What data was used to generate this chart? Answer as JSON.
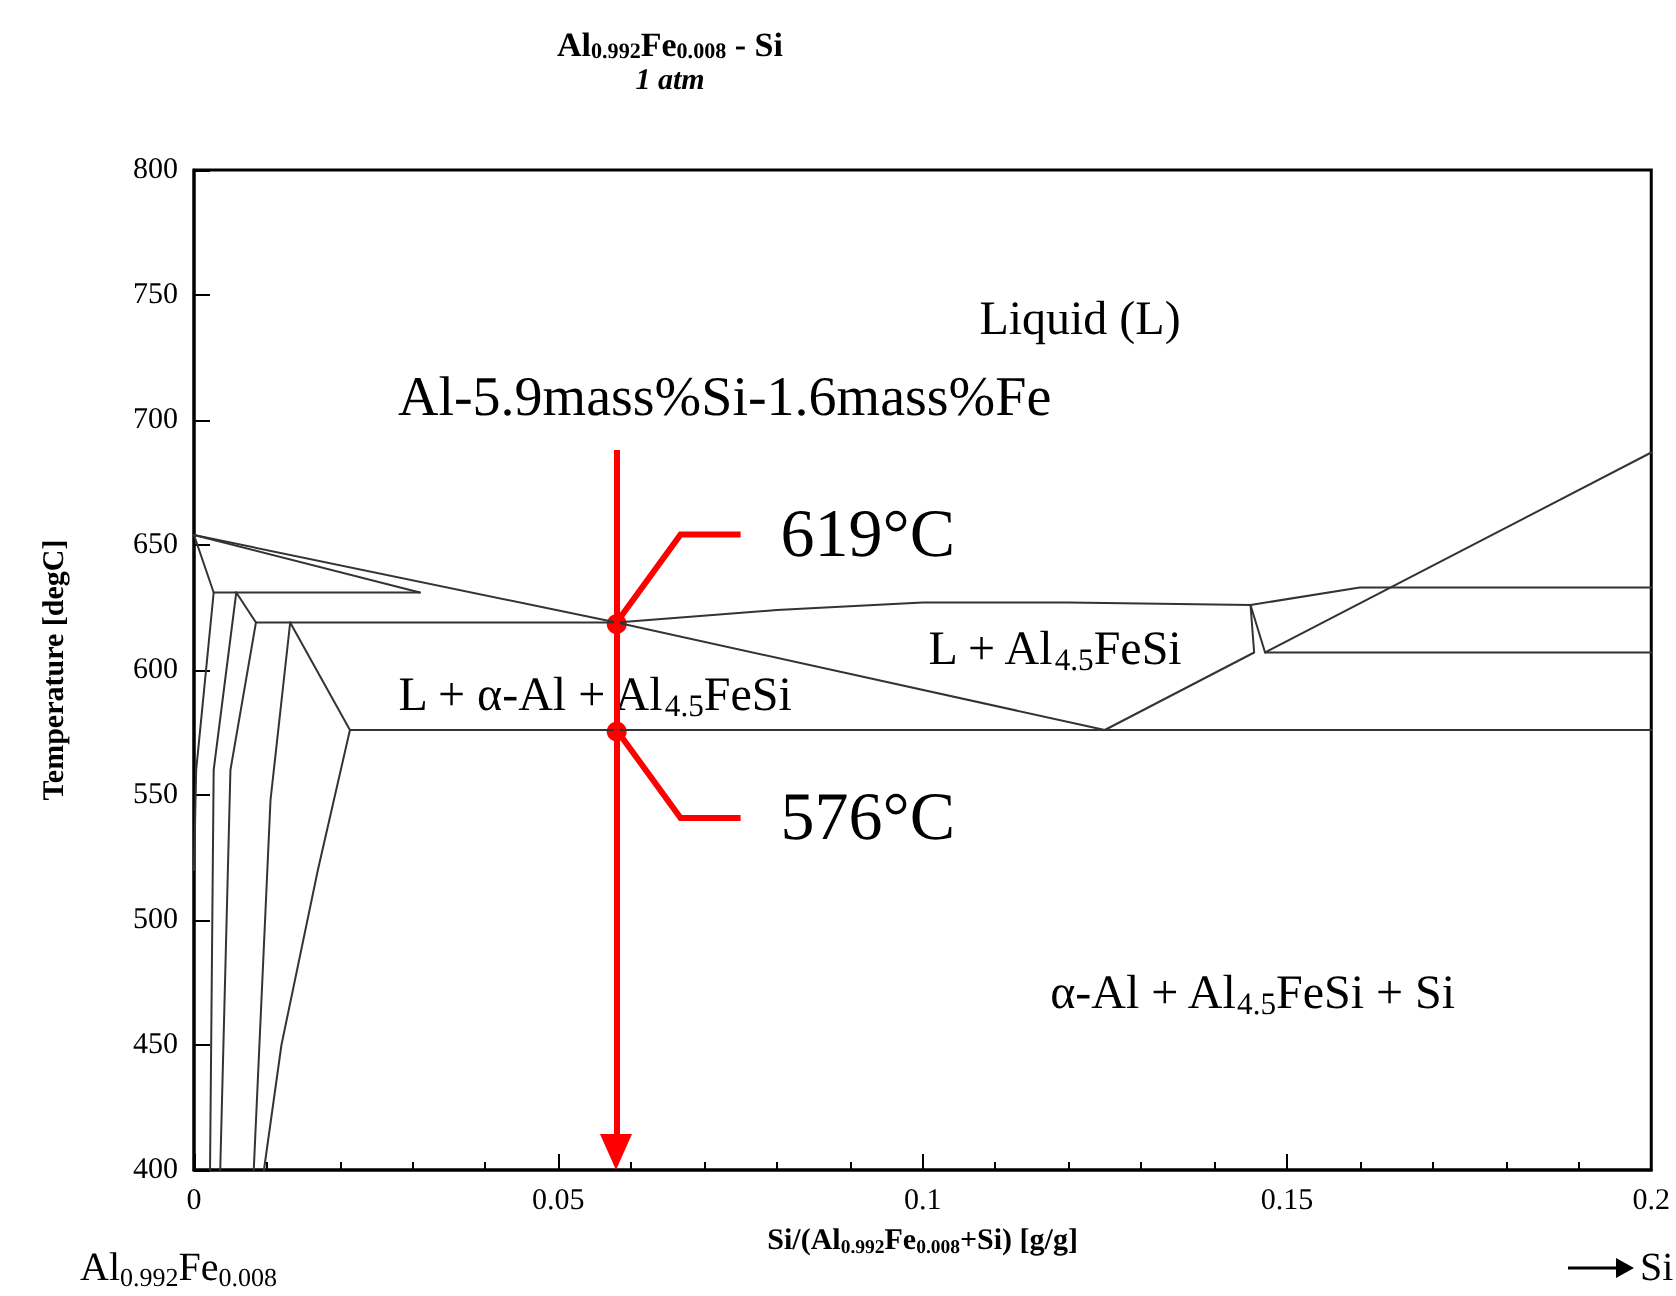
{
  "chart_data": {
    "type": "line",
    "title": "Al$_{0.992}$Fe$_{0.008}$ - Si",
    "subtitle": "1 atm",
    "xlabel": "Si/(Al$_{0.992}$Fe$_{0.008}$+Si) [g/g]",
    "ylabel": "Temperature [degC]",
    "xlim": [
      0,
      0.2
    ],
    "xticks": [
      0,
      0.05,
      0.1,
      0.15,
      0.2
    ],
    "ylim": [
      400,
      800
    ],
    "yticks": [
      400,
      450,
      500,
      550,
      600,
      650,
      700,
      750,
      800
    ],
    "grid": false,
    "marker": "none",
    "line_style": "solid",
    "series": [
      {
        "color": "#333333",
        "x": [
          0,
          0.058,
          0.125
        ],
        "values": [
          654,
          619,
          576
        ]
      },
      {
        "color": "#333333",
        "x": [
          0,
          0.031
        ],
        "values": [
          654,
          631
        ]
      },
      {
        "color": "#333333",
        "x": [
          0.0027,
          0.031
        ],
        "values": [
          631,
          631
        ]
      },
      {
        "color": "#333333",
        "x": [
          0.0085,
          0.058
        ],
        "values": [
          619,
          619
        ]
      },
      {
        "color": "#333333",
        "x": [
          0.0214,
          0.2
        ],
        "values": [
          576,
          576
        ]
      },
      {
        "color": "#333333",
        "x": [
          0.058,
          0.08,
          0.1,
          0.12,
          0.145,
          0.16,
          0.2
        ],
        "values": [
          619,
          624,
          627,
          627,
          626,
          633,
          633
        ]
      },
      {
        "color": "#333333",
        "x": [
          0.125,
          0.1455,
          0.145
        ],
        "values": [
          576,
          607,
          626
        ]
      },
      {
        "color": "#333333",
        "x": [
          0.145,
          0.147,
          0.2
        ],
        "values": [
          626,
          607,
          687
        ]
      },
      {
        "color": "#333333",
        "x": [
          0.147,
          0.2
        ],
        "values": [
          607,
          607
        ]
      },
      {
        "color": "#333333",
        "x": [
          0,
          0.0027,
          0.0003,
          0
        ],
        "values": [
          654,
          631,
          560,
          520
        ]
      },
      {
        "color": "#333333",
        "x": [
          0.0058,
          0.0027,
          0.0022
        ],
        "values": [
          631,
          560,
          400
        ]
      },
      {
        "color": "#333333",
        "x": [
          0.0058,
          0.0085,
          0.005,
          0.0036
        ],
        "values": [
          631,
          619,
          560,
          400
        ]
      },
      {
        "color": "#333333",
        "x": [
          0.0132,
          0.0105,
          0.0082
        ],
        "values": [
          619,
          548,
          400
        ]
      },
      {
        "color": "#333333",
        "x": [
          0.0132,
          0.0214,
          0.017,
          0.012,
          0.0096
        ],
        "values": [
          619,
          576,
          520,
          450,
          400
        ]
      }
    ],
    "ref_lines": [
      {
        "axis": "x",
        "value": 0.058,
        "label": "Al-5.9mass%Si-1.6mass%Fe",
        "color": "#ff0000"
      }
    ],
    "annotations": [
      {
        "text": "619°C",
        "x": 0.058,
        "y": 619
      },
      {
        "text": "576°C",
        "x": 0.058,
        "y": 576
      },
      "Liquid (L)",
      "L + Al$_{4.5}$FeSi",
      "L + α-Al + Al$_{4.5}$FeSi",
      "α-Al + Al$_{4.5}$FeSi + Si",
      "Al$_{0.992}$Fe$_{0.008}$",
      "Si"
    ]
  }
}
